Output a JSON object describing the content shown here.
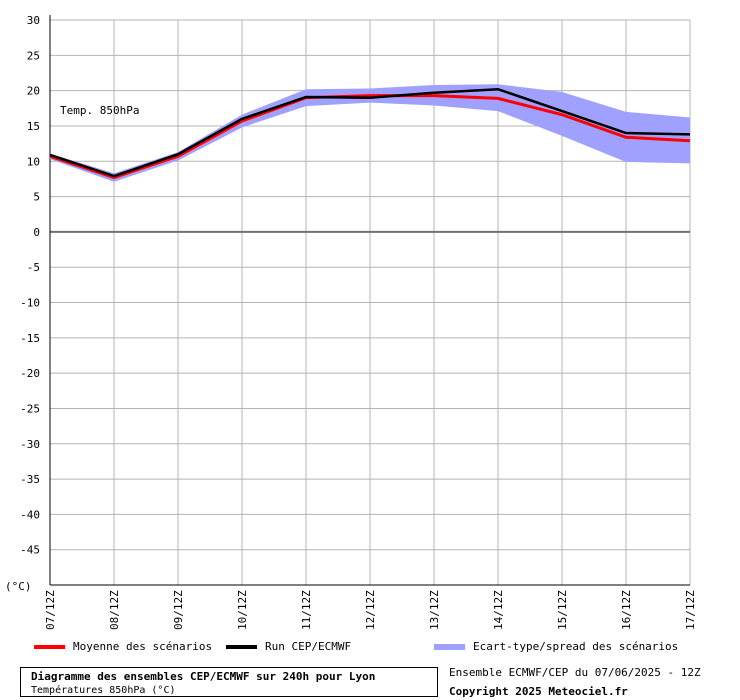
{
  "chart_data": {
    "type": "line",
    "annotation": "Temp. 850hPa",
    "unit_label": "(°C)",
    "ylim": [
      -50,
      30
    ],
    "y_ticks": [
      30,
      25,
      20,
      15,
      10,
      5,
      0,
      -5,
      -10,
      -15,
      -20,
      -25,
      -30,
      -35,
      -40,
      -45
    ],
    "x_labels": [
      "07/12Z",
      "08/12Z",
      "09/12Z",
      "10/12Z",
      "11/12Z",
      "12/12Z",
      "13/12Z",
      "14/12Z",
      "15/12Z",
      "16/12Z",
      "17/12Z"
    ],
    "grid": true,
    "series": [
      {
        "name": "Moyenne des scénarios",
        "color": "#ff0000",
        "values": [
          10.7,
          7.7,
          10.7,
          15.7,
          19.0,
          19.3,
          19.3,
          18.9,
          16.6,
          13.4,
          12.9
        ]
      },
      {
        "name": "Run CEP/ECMWF",
        "color": "#000000",
        "values": [
          10.9,
          7.9,
          11.0,
          16.0,
          19.1,
          19.0,
          19.7,
          20.2,
          17.1,
          14.0,
          13.8
        ]
      }
    ],
    "spread": {
      "name": "Ecart-type/spread des scénarios",
      "color": "#a0a0ff",
      "upper": [
        11.1,
        8.3,
        11.3,
        16.6,
        20.2,
        20.3,
        20.8,
        20.9,
        19.8,
        17.0,
        16.2
      ],
      "lower": [
        10.3,
        7.1,
        10.1,
        14.8,
        17.8,
        18.3,
        17.9,
        17.1,
        13.6,
        9.9,
        9.7
      ]
    }
  },
  "footer": {
    "title": "Diagramme des ensembles CEP/ECMWF sur 240h pour Lyon",
    "subtitle": "Températures 850hPa (°C)",
    "run_info": "Ensemble ECMWF/CEP du 07/06/2025 - 12Z",
    "copyright": "Copyright 2025 Meteociel.fr"
  }
}
